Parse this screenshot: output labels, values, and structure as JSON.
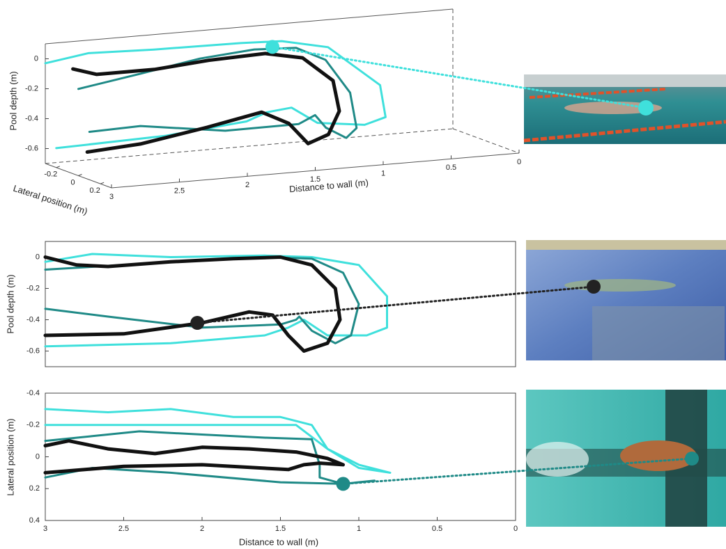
{
  "chart_data": [
    {
      "type": "line3d",
      "x_label": "Distance to wall (m)",
      "y_label": "Pool depth (m)",
      "z_label": "Lateral position (m)",
      "xlim": [
        3,
        0
      ],
      "xticks": [
        3,
        2.5,
        2,
        1.5,
        1,
        0.5,
        0
      ],
      "ylim": [
        -0.7,
        0.1
      ],
      "yticks": [
        0,
        -0.2,
        -0.4,
        -0.6
      ],
      "zlim": [
        -0.3,
        0.3
      ],
      "zticks": [
        -0.2,
        0,
        0.2
      ],
      "series": [
        {
          "color": "#3fe0dc",
          "line_width": 3,
          "x": [
            3,
            2.7,
            2.2,
            1.6,
            1.3,
            1.0,
            0.82,
            0.82,
            0.95,
            1.2,
            1.35,
            1.45,
            1.6,
            2.2,
            3
          ],
          "values": [
            -0.03,
            0.02,
            0,
            0.01,
            0,
            -0.05,
            -0.25,
            -0.45,
            -0.5,
            -0.5,
            -0.4,
            -0.45,
            -0.5,
            -0.55,
            -0.57
          ],
          "z": [
            -0.3,
            -0.28,
            -0.3,
            -0.25,
            -0.25,
            -0.2,
            0.05,
            0.1,
            0.07,
            -0.05,
            -0.1,
            -0.2,
            -0.2,
            -0.2,
            -0.2
          ]
        },
        {
          "color": "#1f8a87",
          "line_width": 3,
          "x": [
            3,
            2.5,
            2,
            1.6,
            1.3,
            1.1,
            1.0,
            1.05,
            1.15,
            1.3,
            1.38,
            1.5,
            2,
            2.6,
            3
          ],
          "values": [
            -0.12,
            -0.07,
            -0.03,
            0,
            -0.01,
            -0.1,
            -0.3,
            -0.5,
            -0.55,
            -0.47,
            -0.38,
            -0.43,
            -0.45,
            -0.38,
            -0.38
          ],
          "z": [
            0,
            -0.05,
            -0.13,
            -0.13,
            -0.12,
            -0.1,
            0,
            0.12,
            0.15,
            0.15,
            0.15,
            0.15,
            0.1,
            0.07,
            0.1
          ]
        },
        {
          "color": "#111111",
          "line_width": 5,
          "x": [
            3,
            2.8,
            2.4,
            2.0,
            1.6,
            1.35,
            1.15,
            1.12,
            1.2,
            1.35,
            1.5,
            1.7,
            2.1,
            2.6,
            3
          ],
          "values": [
            0,
            -0.06,
            -0.05,
            -0.02,
            0,
            -0.04,
            -0.2,
            -0.4,
            -0.55,
            -0.6,
            -0.45,
            -0.36,
            -0.43,
            -0.5,
            -0.52
          ],
          "z": [
            -0.05,
            -0.08,
            -0.05,
            -0.05,
            -0.03,
            0,
            0.03,
            0.05,
            0.05,
            0.05,
            0.06,
            0.06,
            0.06,
            0.07,
            0.08
          ]
        }
      ],
      "highlight": {
        "x": 1.45,
        "value": 0,
        "z": -0.15,
        "color": "#3fe0dc"
      }
    },
    {
      "type": "line",
      "y_label": "Pool depth (m)",
      "xlim": [
        3,
        0
      ],
      "ylim": [
        -0.7,
        0.1
      ],
      "yticks": [
        0,
        -0.2,
        -0.4,
        -0.6
      ],
      "series": [
        {
          "color": "#3fe0dc",
          "line_width": 3,
          "x": [
            3,
            2.7,
            2.2,
            1.6,
            1.3,
            1.0,
            0.82,
            0.82,
            0.95,
            1.2,
            1.35,
            1.45,
            1.6,
            2.2,
            3
          ],
          "values": [
            -0.03,
            0.02,
            0,
            0.01,
            0,
            -0.05,
            -0.25,
            -0.45,
            -0.5,
            -0.5,
            -0.4,
            -0.45,
            -0.5,
            -0.55,
            -0.57
          ]
        },
        {
          "color": "#1f8a87",
          "line_width": 3,
          "x": [
            3,
            2.5,
            2,
            1.6,
            1.3,
            1.1,
            1.0,
            1.05,
            1.15,
            1.3,
            1.38,
            1.4,
            1.5,
            2,
            2.6,
            3
          ],
          "values": [
            -0.08,
            -0.05,
            -0.02,
            0,
            -0.01,
            -0.1,
            -0.3,
            -0.5,
            -0.55,
            -0.47,
            -0.38,
            -0.4,
            -0.43,
            -0.45,
            -0.38,
            -0.33
          ]
        },
        {
          "color": "#111111",
          "line_width": 5,
          "x": [
            3,
            2.8,
            2.6,
            2.2,
            1.8,
            1.5,
            1.3,
            1.15,
            1.12,
            1.2,
            1.35,
            1.45,
            1.55,
            1.7,
            2.0,
            2.5,
            3
          ],
          "values": [
            0,
            -0.05,
            -0.06,
            -0.03,
            -0.01,
            0,
            -0.05,
            -0.2,
            -0.4,
            -0.55,
            -0.6,
            -0.5,
            -0.37,
            -0.35,
            -0.42,
            -0.49,
            -0.5
          ]
        }
      ],
      "highlight": {
        "x": 2.03,
        "value": -0.42,
        "color": "#222222"
      }
    },
    {
      "type": "line",
      "x_label": "Distance to wall (m)",
      "y_label": "Lateral position (m)",
      "xlim": [
        3,
        0
      ],
      "xticks": [
        3,
        2.5,
        2,
        1.5,
        1,
        0.5,
        0
      ],
      "ylim": [
        0.4,
        -0.4
      ],
      "yticks": [
        -0.4,
        -0.2,
        0,
        0.2,
        0.4
      ],
      "series": [
        {
          "color": "#3fe0dc",
          "line_width": 3,
          "x": [
            3,
            2.6,
            2.2,
            1.8,
            1.5,
            1.3,
            1.2,
            1.0,
            0.8,
            1.0,
            1.2,
            1.4,
            1.8,
            2.5,
            3
          ],
          "values": [
            -0.3,
            -0.28,
            -0.3,
            -0.25,
            -0.25,
            -0.2,
            -0.05,
            0.05,
            0.1,
            0.07,
            -0.05,
            -0.2,
            -0.2,
            -0.2,
            -0.2
          ]
        },
        {
          "color": "#1f8a87",
          "line_width": 3,
          "x": [
            3,
            2.7,
            2.4,
            2,
            1.6,
            1.3,
            1.25,
            1.25,
            1.1,
            0.9,
            1.1,
            1.5,
            2.2,
            2.7,
            3
          ],
          "values": [
            -0.1,
            -0.13,
            -0.16,
            -0.14,
            -0.12,
            -0.11,
            0.05,
            0.13,
            0.17,
            0.15,
            0.17,
            0.16,
            0.1,
            0.07,
            0.13
          ]
        },
        {
          "color": "#111111",
          "line_width": 5,
          "x": [
            3,
            2.85,
            2.6,
            2.3,
            2,
            1.7,
            1.4,
            1.2,
            1.1,
            1.25,
            1.35,
            1.45,
            2,
            2.5,
            3
          ],
          "values": [
            -0.07,
            -0.1,
            -0.05,
            -0.02,
            -0.06,
            -0.05,
            -0.03,
            0.01,
            0.05,
            0.04,
            0.05,
            0.08,
            0.05,
            0.06,
            0.1
          ]
        }
      ],
      "highlight": {
        "x": 1.1,
        "value": 0.17,
        "color": "#1f8a87"
      }
    }
  ]
}
